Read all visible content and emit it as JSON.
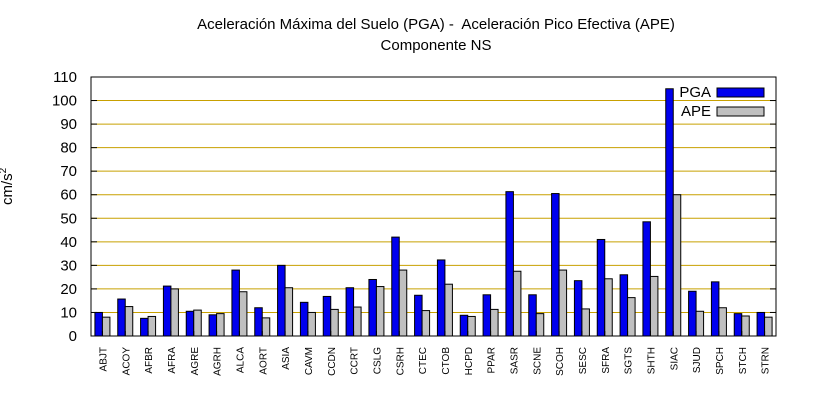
{
  "chart_data": {
    "type": "bar",
    "title": "Aceleración Máxima del Suelo (PGA) -  Aceleración Pico Efectiva (APE)",
    "subtitle": "Componente NS",
    "xlabel": "",
    "ylabel": "cm/s",
    "ylabel_superscript": "2",
    "ylim": [
      0,
      110
    ],
    "yticks": [
      0,
      10,
      20,
      30,
      40,
      50,
      60,
      70,
      80,
      90,
      100,
      110
    ],
    "grid": true,
    "legend_position": "top-right",
    "categories": [
      "ABJT",
      "ACOY",
      "AFBR",
      "AFRA",
      "AGRE",
      "AGRH",
      "ALCA",
      "AORT",
      "ASIA",
      "CAVM",
      "CCDN",
      "CCRT",
      "CSLG",
      "CSRH",
      "CTEC",
      "CTOB",
      "HCPD",
      "PPAR",
      "SASR",
      "SCNE",
      "SCOH",
      "SESC",
      "SFRA",
      "SGTS",
      "SHTH",
      "SIAC",
      "SJUD",
      "SPCH",
      "STCH",
      "STRN"
    ],
    "series": [
      {
        "name": "PGA",
        "color": "#0000ee",
        "values": [
          10,
          15.7,
          7.5,
          21.2,
          10.5,
          9,
          28,
          12,
          30,
          14.3,
          16.8,
          20.5,
          24,
          42,
          17.3,
          32.3,
          8.8,
          17.5,
          61.3,
          17.5,
          60.5,
          23.5,
          41,
          26,
          48.5,
          105,
          19,
          23,
          9.5,
          10
        ]
      },
      {
        "name": "APE",
        "color": "#c0c0c0",
        "values": [
          8,
          12.5,
          8.3,
          20,
          11,
          9.5,
          18.8,
          7.7,
          20.5,
          10,
          11.3,
          12.3,
          21,
          28,
          10.8,
          22,
          8.3,
          11.3,
          27.5,
          9.5,
          28,
          11.5,
          24.3,
          16.3,
          25.3,
          60,
          10.5,
          12,
          8.5,
          8
        ]
      }
    ]
  }
}
